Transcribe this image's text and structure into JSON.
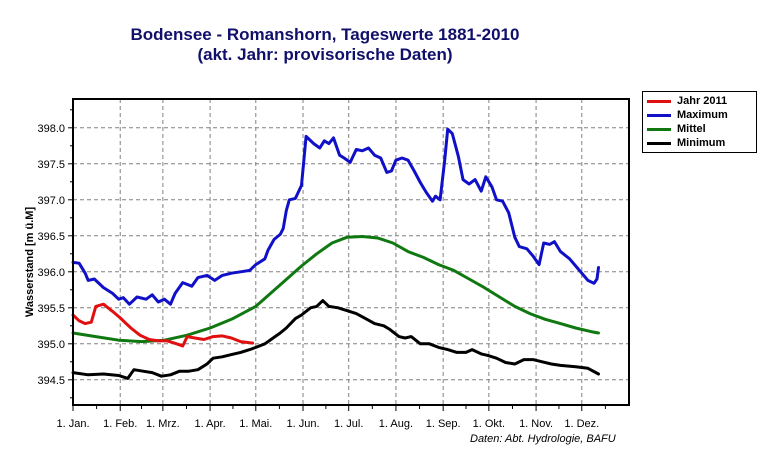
{
  "chart_data": {
    "type": "line",
    "title": "Bodensee - Romanshorn, Tageswerte 1881-2010",
    "subtitle": "(akt. Jahr: provisorische Daten)",
    "xlabel": "",
    "ylabel": "Wasserstand [m ü.M]",
    "xlim_days": [
      0,
      365
    ],
    "ylim": [
      394.15,
      398.4
    ],
    "grid": true,
    "legend_position": "top-right-outside",
    "x_ticks": [
      {
        "day": 0,
        "label": "1. Jan."
      },
      {
        "day": 31,
        "label": "1. Feb."
      },
      {
        "day": 59,
        "label": "1. Mrz."
      },
      {
        "day": 90,
        "label": "1. Apr."
      },
      {
        "day": 120,
        "label": "1. Mai."
      },
      {
        "day": 151,
        "label": "1. Jun."
      },
      {
        "day": 181,
        "label": "1. Jul."
      },
      {
        "day": 212,
        "label": "1. Aug."
      },
      {
        "day": 243,
        "label": "1. Sep."
      },
      {
        "day": 273,
        "label": "1. Okt."
      },
      {
        "day": 304,
        "label": "1. Nov."
      },
      {
        "day": 334,
        "label": "1. Dez."
      }
    ],
    "y_ticks": [
      394.5,
      395.0,
      395.5,
      396.0,
      396.5,
      397.0,
      397.5,
      398.0
    ],
    "y_tick_labels": [
      "394.5",
      "395.0",
      "395.5",
      "396.0",
      "396.5",
      "397.0",
      "397.5",
      "398.0"
    ],
    "series": [
      {
        "name": "Jahr 2011",
        "color": "#e01010",
        "points": [
          [
            0,
            395.4
          ],
          [
            4,
            395.32
          ],
          [
            8,
            395.28
          ],
          [
            12,
            395.3
          ],
          [
            15,
            395.52
          ],
          [
            20,
            395.55
          ],
          [
            26,
            395.45
          ],
          [
            31,
            395.36
          ],
          [
            38,
            395.22
          ],
          [
            44,
            395.12
          ],
          [
            50,
            395.06
          ],
          [
            56,
            395.04
          ],
          [
            62,
            395.04
          ],
          [
            68,
            395.0
          ],
          [
            72,
            394.97
          ],
          [
            75,
            395.1
          ],
          [
            80,
            395.08
          ],
          [
            86,
            395.06
          ],
          [
            92,
            395.1
          ],
          [
            98,
            395.11
          ],
          [
            104,
            395.08
          ],
          [
            110,
            395.03
          ],
          [
            118,
            395.01
          ]
        ]
      },
      {
        "name": "Maximum",
        "color": "#1010c8",
        "points": [
          [
            0,
            396.13
          ],
          [
            4,
            396.12
          ],
          [
            8,
            395.98
          ],
          [
            10,
            395.88
          ],
          [
            14,
            395.9
          ],
          [
            20,
            395.78
          ],
          [
            26,
            395.7
          ],
          [
            30,
            395.62
          ],
          [
            33,
            395.64
          ],
          [
            37,
            395.55
          ],
          [
            42,
            395.65
          ],
          [
            48,
            395.62
          ],
          [
            52,
            395.68
          ],
          [
            56,
            395.58
          ],
          [
            60,
            395.62
          ],
          [
            64,
            395.55
          ],
          [
            67,
            395.7
          ],
          [
            72,
            395.85
          ],
          [
            78,
            395.8
          ],
          [
            82,
            395.92
          ],
          [
            88,
            395.95
          ],
          [
            93,
            395.88
          ],
          [
            98,
            395.95
          ],
          [
            104,
            395.98
          ],
          [
            110,
            396.0
          ],
          [
            116,
            396.02
          ],
          [
            120,
            396.1
          ],
          [
            126,
            396.18
          ],
          [
            128,
            396.3
          ],
          [
            132,
            396.45
          ],
          [
            136,
            396.52
          ],
          [
            138,
            396.6
          ],
          [
            140,
            396.85
          ],
          [
            142,
            397.0
          ],
          [
            146,
            397.02
          ],
          [
            150,
            397.2
          ],
          [
            153,
            397.88
          ],
          [
            158,
            397.78
          ],
          [
            162,
            397.72
          ],
          [
            165,
            397.82
          ],
          [
            168,
            397.78
          ],
          [
            171,
            397.86
          ],
          [
            175,
            397.62
          ],
          [
            178,
            397.58
          ],
          [
            182,
            397.52
          ],
          [
            186,
            397.7
          ],
          [
            190,
            397.68
          ],
          [
            194,
            397.72
          ],
          [
            198,
            397.62
          ],
          [
            202,
            397.58
          ],
          [
            206,
            397.38
          ],
          [
            209,
            397.4
          ],
          [
            212,
            397.55
          ],
          [
            216,
            397.58
          ],
          [
            220,
            397.55
          ],
          [
            224,
            397.4
          ],
          [
            228,
            397.24
          ],
          [
            232,
            397.1
          ],
          [
            236,
            396.98
          ],
          [
            238,
            397.05
          ],
          [
            241,
            397.0
          ],
          [
            244,
            397.55
          ],
          [
            246,
            397.98
          ],
          [
            249,
            397.92
          ],
          [
            253,
            397.6
          ],
          [
            256,
            397.28
          ],
          [
            260,
            397.22
          ],
          [
            264,
            397.28
          ],
          [
            268,
            397.12
          ],
          [
            271,
            397.32
          ],
          [
            275,
            397.18
          ],
          [
            278,
            397.0
          ],
          [
            282,
            396.98
          ],
          [
            286,
            396.82
          ],
          [
            290,
            396.48
          ],
          [
            293,
            396.35
          ],
          [
            298,
            396.32
          ],
          [
            302,
            396.22
          ],
          [
            306,
            396.1
          ],
          [
            309,
            396.4
          ],
          [
            313,
            396.38
          ],
          [
            316,
            396.42
          ],
          [
            320,
            396.28
          ],
          [
            326,
            396.18
          ],
          [
            330,
            396.08
          ],
          [
            334,
            395.98
          ],
          [
            338,
            395.88
          ],
          [
            342,
            395.84
          ],
          [
            344,
            395.9
          ],
          [
            345,
            396.06
          ]
        ]
      },
      {
        "name": "Mittel",
        "color": "#107810",
        "points": [
          [
            0,
            395.15
          ],
          [
            15,
            395.1
          ],
          [
            30,
            395.05
          ],
          [
            45,
            395.03
          ],
          [
            60,
            395.05
          ],
          [
            75,
            395.12
          ],
          [
            90,
            395.22
          ],
          [
            105,
            395.35
          ],
          [
            120,
            395.52
          ],
          [
            135,
            395.8
          ],
          [
            150,
            396.08
          ],
          [
            160,
            396.25
          ],
          [
            170,
            396.4
          ],
          [
            180,
            396.48
          ],
          [
            190,
            396.49
          ],
          [
            200,
            396.47
          ],
          [
            210,
            396.4
          ],
          [
            220,
            396.28
          ],
          [
            230,
            396.2
          ],
          [
            240,
            396.1
          ],
          [
            250,
            396.02
          ],
          [
            260,
            395.9
          ],
          [
            270,
            395.78
          ],
          [
            280,
            395.65
          ],
          [
            290,
            395.52
          ],
          [
            300,
            395.42
          ],
          [
            310,
            395.34
          ],
          [
            320,
            395.28
          ],
          [
            330,
            395.22
          ],
          [
            340,
            395.17
          ],
          [
            345,
            395.15
          ]
        ]
      },
      {
        "name": "Minimum",
        "color": "#000000",
        "points": [
          [
            0,
            394.6
          ],
          [
            10,
            394.57
          ],
          [
            20,
            394.58
          ],
          [
            30,
            394.56
          ],
          [
            36,
            394.52
          ],
          [
            40,
            394.64
          ],
          [
            46,
            394.62
          ],
          [
            52,
            394.6
          ],
          [
            58,
            394.55
          ],
          [
            64,
            394.57
          ],
          [
            70,
            394.62
          ],
          [
            76,
            394.62
          ],
          [
            82,
            394.64
          ],
          [
            88,
            394.72
          ],
          [
            92,
            394.8
          ],
          [
            98,
            394.82
          ],
          [
            104,
            394.85
          ],
          [
            110,
            394.88
          ],
          [
            116,
            394.92
          ],
          [
            120,
            394.95
          ],
          [
            126,
            395.0
          ],
          [
            130,
            395.06
          ],
          [
            136,
            395.15
          ],
          [
            140,
            395.22
          ],
          [
            146,
            395.35
          ],
          [
            150,
            395.4
          ],
          [
            156,
            395.5
          ],
          [
            160,
            395.52
          ],
          [
            164,
            395.6
          ],
          [
            168,
            395.52
          ],
          [
            174,
            395.5
          ],
          [
            180,
            395.46
          ],
          [
            186,
            395.42
          ],
          [
            192,
            395.35
          ],
          [
            198,
            395.28
          ],
          [
            204,
            395.25
          ],
          [
            208,
            395.2
          ],
          [
            214,
            395.1
          ],
          [
            218,
            395.08
          ],
          [
            222,
            395.1
          ],
          [
            228,
            395.0
          ],
          [
            234,
            395.0
          ],
          [
            240,
            394.95
          ],
          [
            246,
            394.92
          ],
          [
            252,
            394.88
          ],
          [
            258,
            394.88
          ],
          [
            262,
            394.92
          ],
          [
            268,
            394.86
          ],
          [
            272,
            394.84
          ],
          [
            278,
            394.8
          ],
          [
            284,
            394.74
          ],
          [
            290,
            394.72
          ],
          [
            296,
            394.78
          ],
          [
            302,
            394.78
          ],
          [
            308,
            394.75
          ],
          [
            314,
            394.72
          ],
          [
            320,
            394.7
          ],
          [
            330,
            394.68
          ],
          [
            338,
            394.66
          ],
          [
            345,
            394.58
          ]
        ]
      }
    ],
    "source_note": "Daten: Abt. Hydrologie, BAFU"
  }
}
